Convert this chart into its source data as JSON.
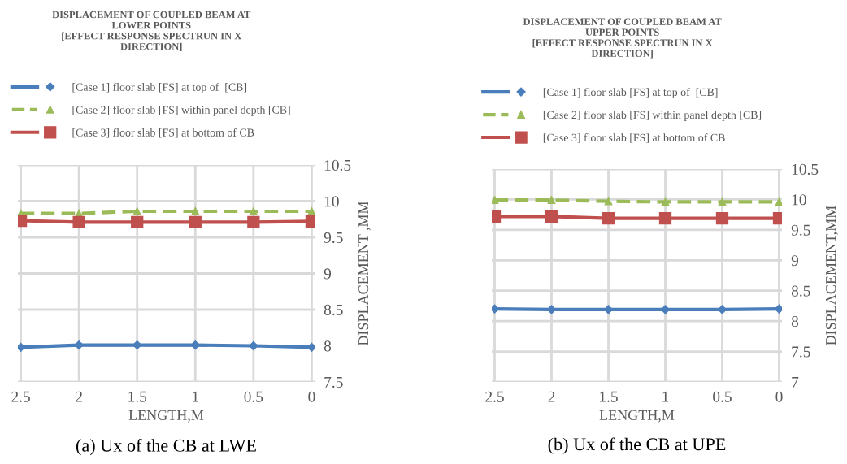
{
  "chart_data": [
    {
      "type": "line",
      "title": "DISPLACEMENT OF COUPLED BEAM AT\nLOWER POINTS\n[EFFECT RESPONSE SPECTRUN IN X\nDIRECTION]",
      "xlabel": "LENGTH,M",
      "ylabel": "DISPLACEMENT ,MM",
      "categories": [
        "2.5",
        "2",
        "1.5",
        "1",
        "0.5",
        "0"
      ],
      "ylim": [
        7.5,
        10.5
      ],
      "yticks": [
        7.5,
        8,
        8.5,
        9,
        9.5,
        10,
        10.5
      ],
      "grid": true,
      "legend": "top",
      "series": [
        {
          "name": "[Case 1] floor slab [FS] at top of  [CB]",
          "color": "#4a7ebb",
          "marker": "diamond",
          "line_style": "solid",
          "values": [
            7.98,
            8.01,
            8.01,
            8.01,
            8.0,
            7.98
          ]
        },
        {
          "name": "[Case 2] floor slab [FS] within panel depth [CB]",
          "color": "#9bbb59",
          "marker": "triangle",
          "line_style": "dashed",
          "values": [
            9.83,
            9.83,
            9.86,
            9.86,
            9.86,
            9.86
          ]
        },
        {
          "name": "[Case 3] floor slab [FS] at bottom of CB",
          "color": "#c0504d",
          "marker": "square",
          "line_style": "solid",
          "values": [
            9.73,
            9.71,
            9.71,
            9.71,
            9.71,
            9.72
          ]
        }
      ],
      "annotations": [
        "(a) Ux of the CB at LWE"
      ]
    },
    {
      "type": "line",
      "title": "DISPLACEMENT OF COUPLED BEAM AT\nUPPER POINTS\n[EFFECT RESPONSE SPECTRUN IN X\nDIRECTION]",
      "xlabel": "LENGTH,M",
      "ylabel": "DISPLACEMENT,MM",
      "categories": [
        "2.5",
        "2",
        "1.5",
        "1",
        "0.5",
        "0"
      ],
      "ylim": [
        7,
        10.5
      ],
      "yticks": [
        7,
        7.5,
        8,
        8.5,
        9,
        9.5,
        10,
        10.5
      ],
      "grid": true,
      "legend": "top",
      "series": [
        {
          "name": "[Case 1] floor slab [FS] at top of  [CB]",
          "color": "#4a7ebb",
          "marker": "diamond",
          "line_style": "solid",
          "values": [
            8.2,
            8.19,
            8.19,
            8.19,
            8.19,
            8.2
          ]
        },
        {
          "name": "[Case 2] floor slab [FS] within panel depth [CB]",
          "color": "#9bbb59",
          "marker": "triangle",
          "line_style": "dashed",
          "values": [
            9.99,
            9.99,
            9.97,
            9.96,
            9.96,
            9.96
          ]
        },
        {
          "name": "[Case 3] floor slab [FS] at bottom of CB",
          "color": "#c0504d",
          "marker": "square",
          "line_style": "solid",
          "values": [
            9.72,
            9.72,
            9.69,
            9.69,
            9.69,
            9.69
          ]
        }
      ],
      "annotations": [
        "(b) Ux of the CB at UPE"
      ]
    }
  ]
}
